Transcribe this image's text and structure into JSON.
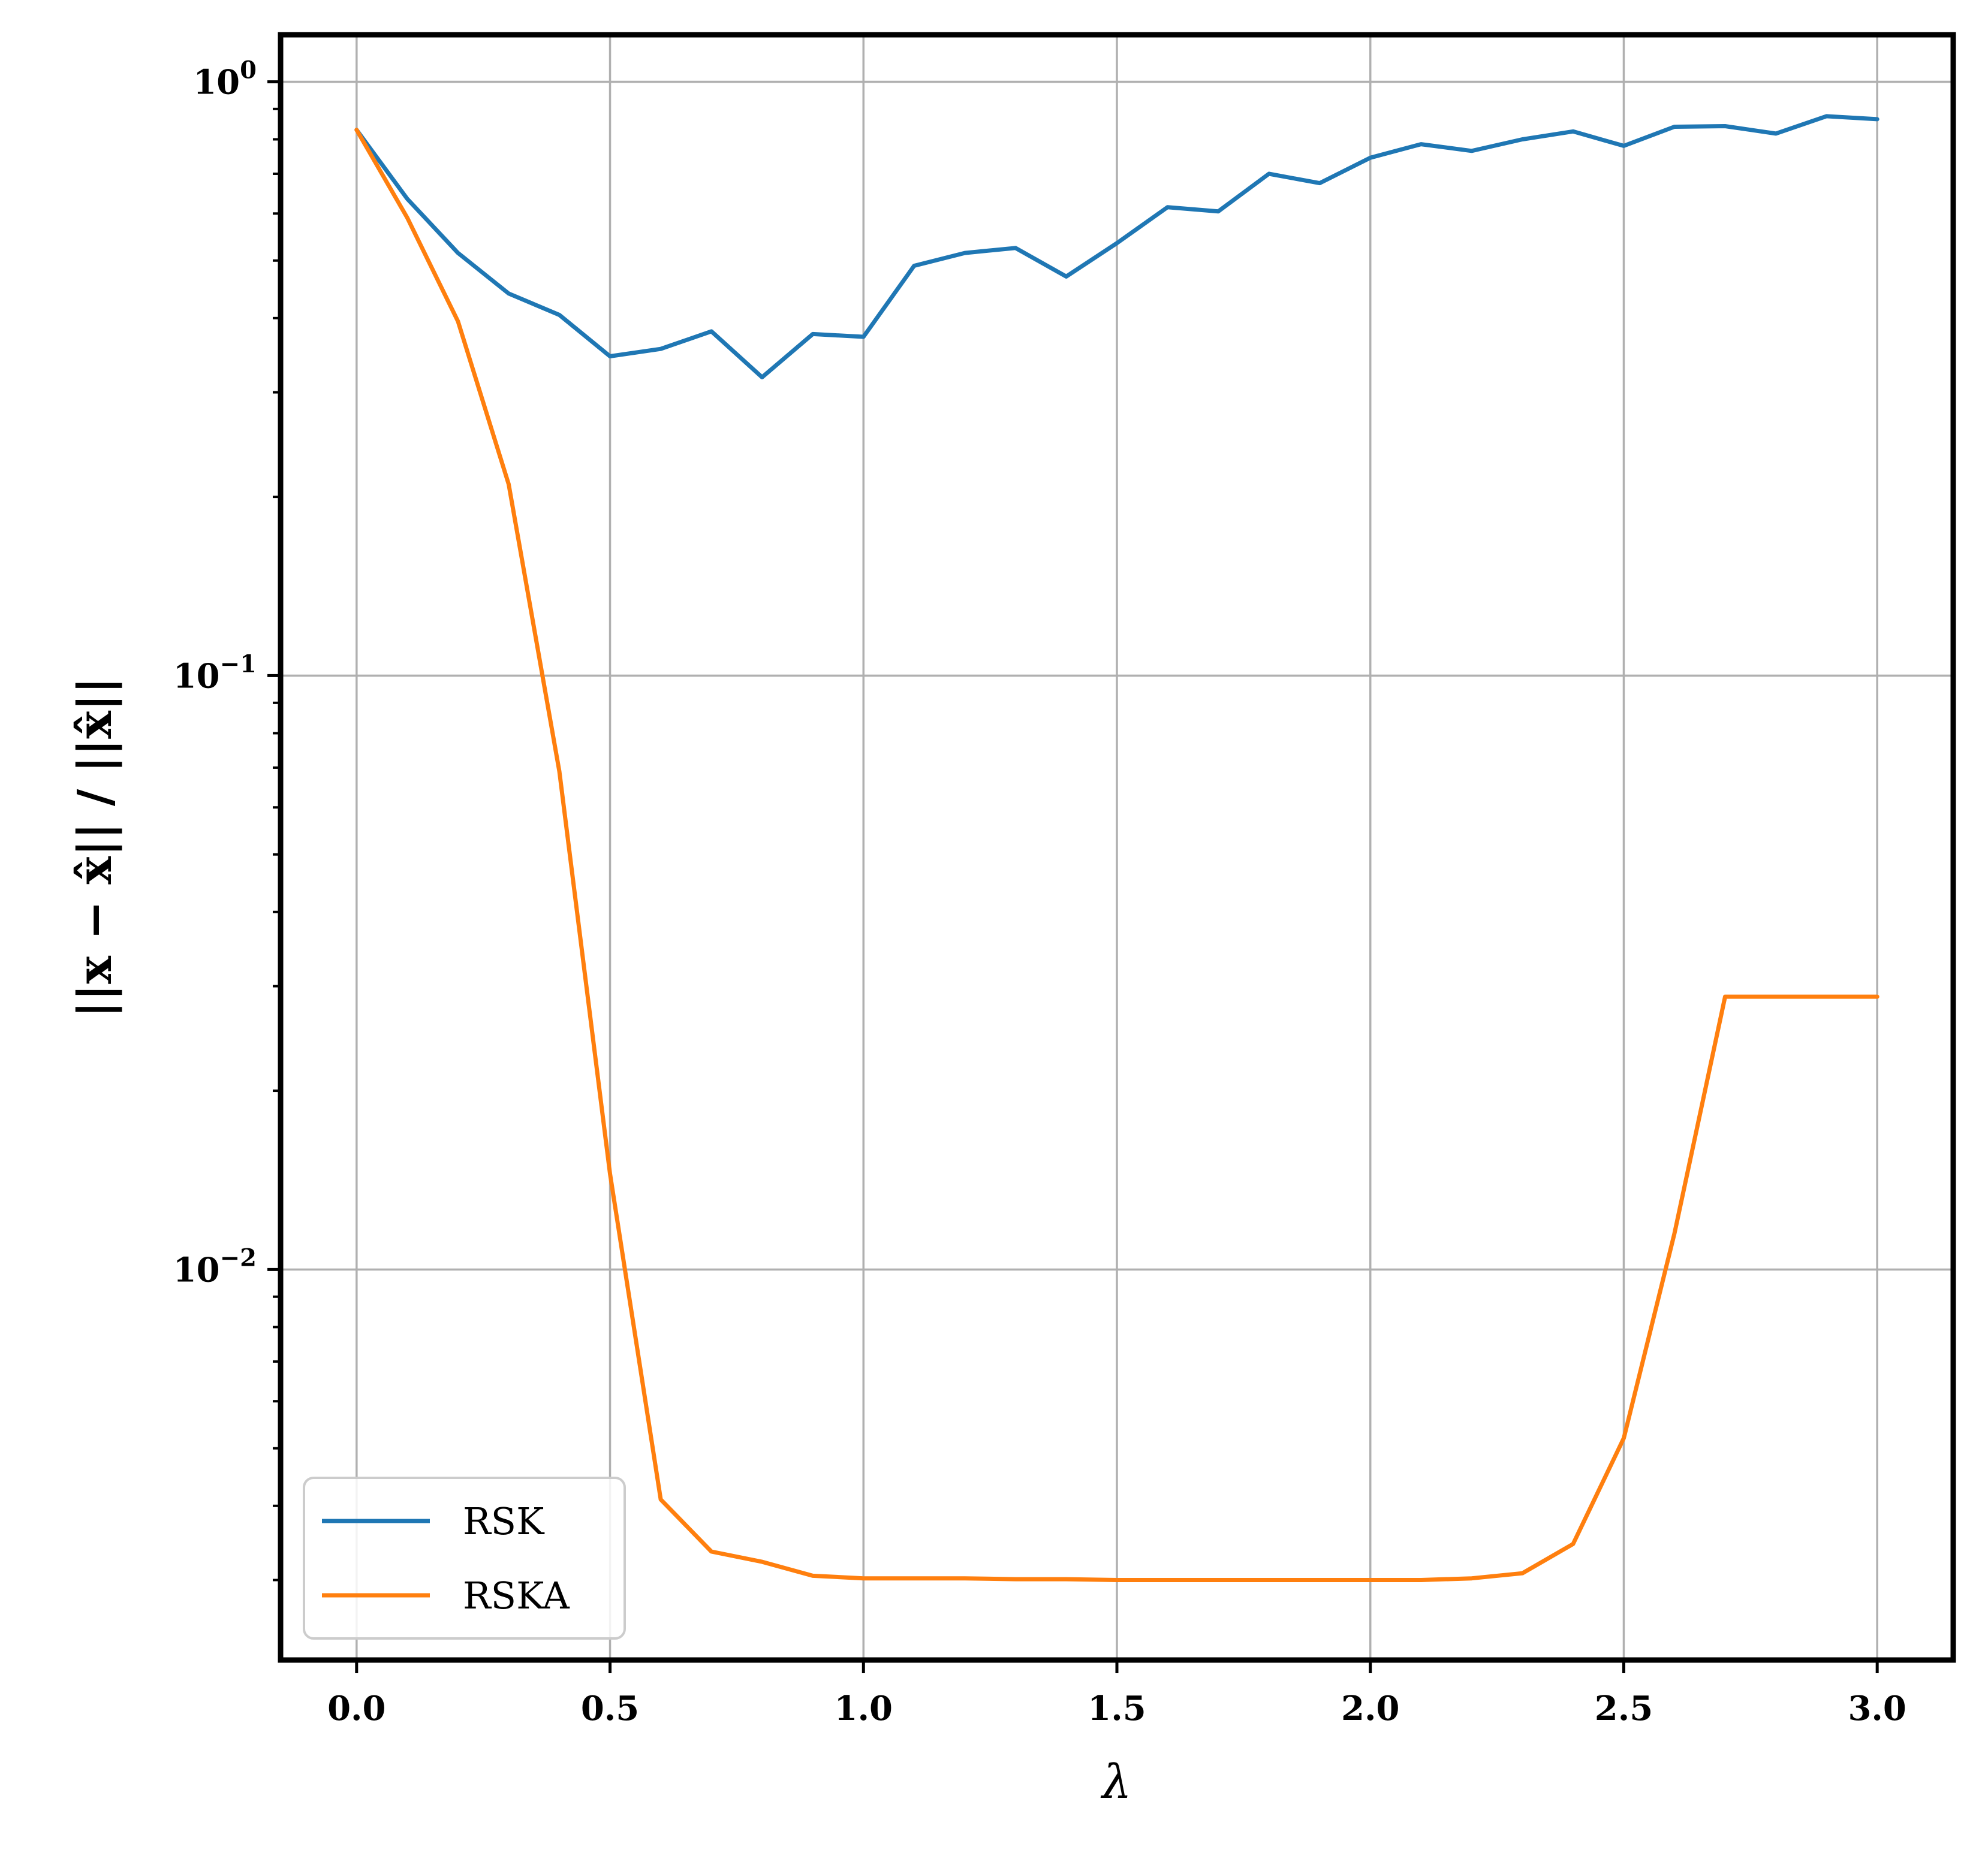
{
  "chart_data": {
    "type": "line",
    "xlabel": "λ",
    "ylabel": "||x − x̂|| / ||x̂||",
    "xlim": [
      -0.15,
      3.15
    ],
    "ylim": [
      0.0022,
      1.2
    ],
    "yscale": "log",
    "grid": true,
    "legend_position": "lower-left",
    "x_ticks": [
      {
        "value": 0.0,
        "label": "0.0"
      },
      {
        "value": 0.5,
        "label": "0.5"
      },
      {
        "value": 1.0,
        "label": "1.0"
      },
      {
        "value": 1.5,
        "label": "1.5"
      },
      {
        "value": 2.0,
        "label": "2.0"
      },
      {
        "value": 2.5,
        "label": "2.5"
      },
      {
        "value": 3.0,
        "label": "3.0"
      }
    ],
    "y_ticks": [
      {
        "value": 1,
        "base": "10",
        "exp": "0"
      },
      {
        "value": 0.1,
        "base": "10",
        "exp": "−1"
      },
      {
        "value": 0.01,
        "base": "10",
        "exp": "−2"
      }
    ],
    "x": [
      0.0,
      0.1,
      0.2,
      0.3,
      0.4,
      0.5,
      0.6,
      0.7,
      0.8,
      0.9,
      1.0,
      1.1,
      1.2,
      1.3,
      1.4,
      1.5,
      1.6,
      1.7,
      1.8,
      1.9,
      2.0,
      2.1,
      2.2,
      2.3,
      2.4,
      2.5,
      2.6,
      2.7,
      2.8,
      2.9,
      3.0
    ],
    "series": [
      {
        "name": "RSK",
        "color": "#1f77b4",
        "values": [
          0.83,
          0.635,
          0.515,
          0.44,
          0.405,
          0.345,
          0.355,
          0.38,
          0.318,
          0.376,
          0.372,
          0.49,
          0.515,
          0.525,
          0.47,
          0.535,
          0.615,
          0.605,
          0.7,
          0.675,
          0.745,
          0.785,
          0.765,
          0.8,
          0.825,
          0.78,
          0.84,
          0.842,
          0.818,
          0.875,
          0.865
        ]
      },
      {
        "name": "RSKA",
        "color": "#ff7f0e",
        "values": [
          0.83,
          0.59,
          0.395,
          0.21,
          0.069,
          0.0145,
          0.0041,
          0.00335,
          0.00322,
          0.00305,
          0.00302,
          0.00302,
          0.00302,
          0.00301,
          0.00301,
          0.003,
          0.003,
          0.003,
          0.003,
          0.003,
          0.003,
          0.003,
          0.00302,
          0.00308,
          0.00345,
          0.0052,
          0.0115,
          0.0288,
          0.0288,
          0.0288,
          0.0288
        ]
      }
    ]
  }
}
